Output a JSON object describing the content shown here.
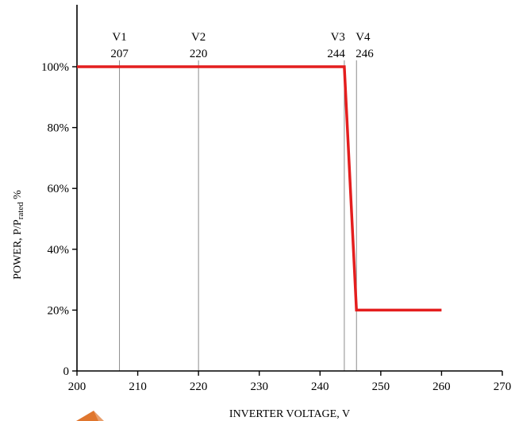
{
  "chart_data": {
    "type": "line",
    "title": "",
    "xlabel": "INVERTER VOLTAGE, V",
    "ylabel": {
      "prefix": "POWER, P/P",
      "subscript": "rated",
      "suffix": " %"
    },
    "xlim": [
      200,
      270
    ],
    "ylim": [
      0,
      100
    ],
    "x_ticks": [
      "200",
      "210",
      "220",
      "230",
      "240",
      "250",
      "260",
      "270"
    ],
    "y_ticks": [
      {
        "value": 0,
        "label": "0"
      },
      {
        "value": 20,
        "label": "20%"
      },
      {
        "value": 40,
        "label": "40%"
      },
      {
        "value": 60,
        "label": "60%"
      },
      {
        "value": 80,
        "label": "80%"
      },
      {
        "value": 100,
        "label": "100%"
      }
    ],
    "series": [
      {
        "color": "#e41e1e",
        "points": [
          [
            200,
            100
          ],
          [
            244,
            100
          ],
          [
            246,
            20
          ],
          [
            260,
            20
          ]
        ]
      }
    ],
    "reference_lines": [
      {
        "x": 207,
        "name": "V1",
        "value_label": "207"
      },
      {
        "x": 220,
        "name": "V2",
        "value_label": "220"
      },
      {
        "x": 244,
        "name": "V3",
        "value_label": "244"
      },
      {
        "x": 246,
        "name": "V4",
        "value_label": "246"
      }
    ],
    "grid": false
  },
  "colors": {
    "axis": "#000000",
    "reference_line": "#808080",
    "logo_orange": "#e0762e"
  }
}
